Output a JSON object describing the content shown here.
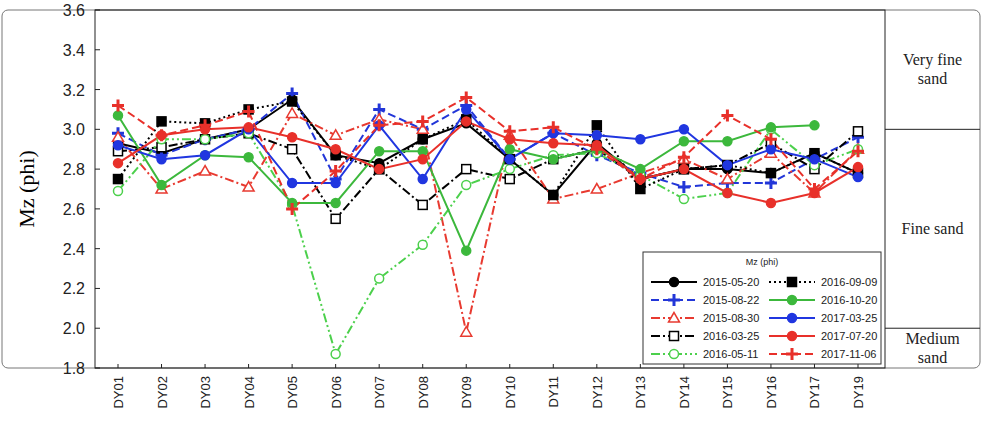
{
  "chart_data": {
    "type": "line",
    "y_label": "Mz (phi)",
    "legend_title": "Mz (phi)",
    "legend": "lower right",
    "categories": [
      "DY01",
      "DY02",
      "DY03",
      "DY04",
      "DY05",
      "DY06",
      "DY07",
      "DY08",
      "DY09",
      "DY10",
      "DY11",
      "DY12",
      "DY13",
      "DY14",
      "DY15",
      "DY16",
      "DY17",
      "DY19"
    ],
    "ylim": [
      1.8,
      3.6
    ],
    "yticks": [
      1.8,
      {
        "value": 2,
        "label": "2.0"
      },
      2.2,
      2.4,
      2.6,
      2.8,
      {
        "value": 3,
        "label": "3.0"
      },
      3.2,
      3.4,
      3.6
    ],
    "annotations": [
      {
        "label": "Very fine sand",
        "from": 3,
        "to": 3.6
      },
      {
        "label": "Fine sand",
        "from": 2,
        "to": 3
      },
      {
        "label": "Medium sand",
        "from": 1.8,
        "to": 2
      }
    ],
    "series": [
      {
        "name": "2015-05-20",
        "color": "#000000",
        "line_style": "solid",
        "marker": "circle",
        "values": [
          2.93,
          2.88,
          2.95,
          3.0,
          3.15,
          2.87,
          2.83,
          2.95,
          3.03,
          2.85,
          2.67,
          2.93,
          2.75,
          2.8,
          2.8,
          2.78,
          2.88,
          2.78
        ]
      },
      {
        "name": "2015-08-22",
        "color": "#2236d8",
        "line_style": "dashed",
        "marker": "plus",
        "values": [
          2.98,
          2.87,
          2.95,
          3.0,
          3.18,
          2.75,
          3.1,
          3.0,
          3.12,
          2.85,
          2.98,
          2.87,
          2.78,
          2.71,
          2.73,
          2.73,
          2.85,
          2.96
        ]
      },
      {
        "name": "2015-08-30",
        "color": "#e83a30",
        "line_style": "dashdot",
        "marker": "triangle-open",
        "values": [
          2.96,
          2.7,
          2.79,
          2.71,
          3.08,
          2.97,
          3.05,
          3.0,
          1.98,
          2.97,
          2.65,
          2.7,
          2.78,
          2.85,
          2.75,
          2.88,
          2.68,
          2.9
        ]
      },
      {
        "name": "2016-03-25",
        "color": "#000000",
        "line_style": "dashdot",
        "marker": "square-open",
        "values": [
          2.89,
          2.91,
          2.95,
          2.98,
          2.9,
          2.55,
          2.8,
          2.62,
          2.8,
          2.75,
          2.85,
          2.9,
          2.75,
          2.8,
          2.82,
          2.93,
          2.8,
          2.99
        ]
      },
      {
        "name": "2016-05-11",
        "color": "#4cd04c",
        "line_style": "dashdotdot",
        "marker": "circle-open",
        "values": [
          2.69,
          2.95,
          2.95,
          2.98,
          2.62,
          1.87,
          2.25,
          2.42,
          2.72,
          2.8,
          2.87,
          2.88,
          2.77,
          2.65,
          2.68,
          3.0,
          2.82,
          2.9
        ]
      },
      {
        "name": "2016-09-09",
        "color": "#000000",
        "line_style": "dotted",
        "marker": "square",
        "values": [
          2.75,
          3.04,
          3.03,
          3.1,
          3.14,
          2.87,
          2.8,
          2.95,
          3.05,
          2.85,
          2.67,
          3.02,
          2.7,
          2.8,
          2.82,
          2.78,
          2.88,
          2.78
        ]
      },
      {
        "name": "2016-10-20",
        "color": "#3cb83c",
        "line_style": "solid",
        "marker": "circle",
        "values": [
          3.07,
          2.72,
          2.87,
          2.86,
          2.63,
          2.63,
          2.89,
          2.89,
          2.39,
          2.9,
          2.85,
          2.9,
          2.8,
          2.94,
          2.94,
          3.01,
          3.02,
          null
        ]
      },
      {
        "name": "2017-03-25",
        "color": "#2036e0",
        "line_style": "solid",
        "marker": "circle",
        "values": [
          2.92,
          2.85,
          2.87,
          3.0,
          2.73,
          2.73,
          3.02,
          2.75,
          3.1,
          2.85,
          2.98,
          2.97,
          2.95,
          3.0,
          2.82,
          2.9,
          2.85,
          2.76
        ]
      },
      {
        "name": "2017-07-20",
        "color": "#e8302a",
        "line_style": "solid",
        "marker": "circle",
        "values": [
          2.83,
          2.97,
          3.0,
          3.01,
          2.96,
          2.9,
          2.8,
          2.85,
          3.04,
          2.95,
          2.93,
          2.92,
          2.75,
          2.8,
          2.68,
          2.63,
          2.68,
          2.81
        ]
      },
      {
        "name": "2017-11-06",
        "color": "#e8302a",
        "line_style": "dashed",
        "marker": "plus",
        "values": [
          3.12,
          2.97,
          3.02,
          3.09,
          2.6,
          2.79,
          3.02,
          3.04,
          3.16,
          2.99,
          3.01,
          2.9,
          2.75,
          2.86,
          3.07,
          2.95,
          2.7,
          2.89
        ]
      }
    ]
  }
}
